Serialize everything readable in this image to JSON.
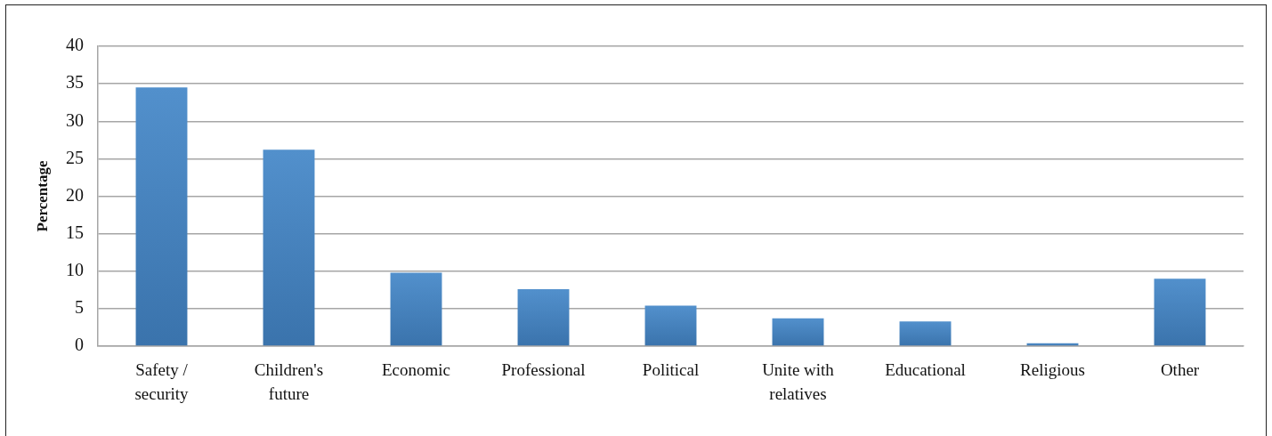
{
  "chart_data": {
    "type": "bar",
    "ylabel": "Percentage",
    "categories": [
      "Safety / security",
      "Children's future",
      "Economic",
      "Professional",
      "Political",
      "Unite with relatives",
      "Educational",
      "Religious",
      "Other"
    ],
    "values": [
      34.5,
      26.2,
      9.8,
      7.6,
      5.4,
      3.7,
      3.3,
      0.4,
      9.0
    ],
    "color": "#4386c8",
    "ylim": [
      0,
      40
    ],
    "yticks": [
      0,
      5,
      10,
      15,
      20,
      25,
      30,
      35,
      40
    ],
    "grid": "y"
  }
}
